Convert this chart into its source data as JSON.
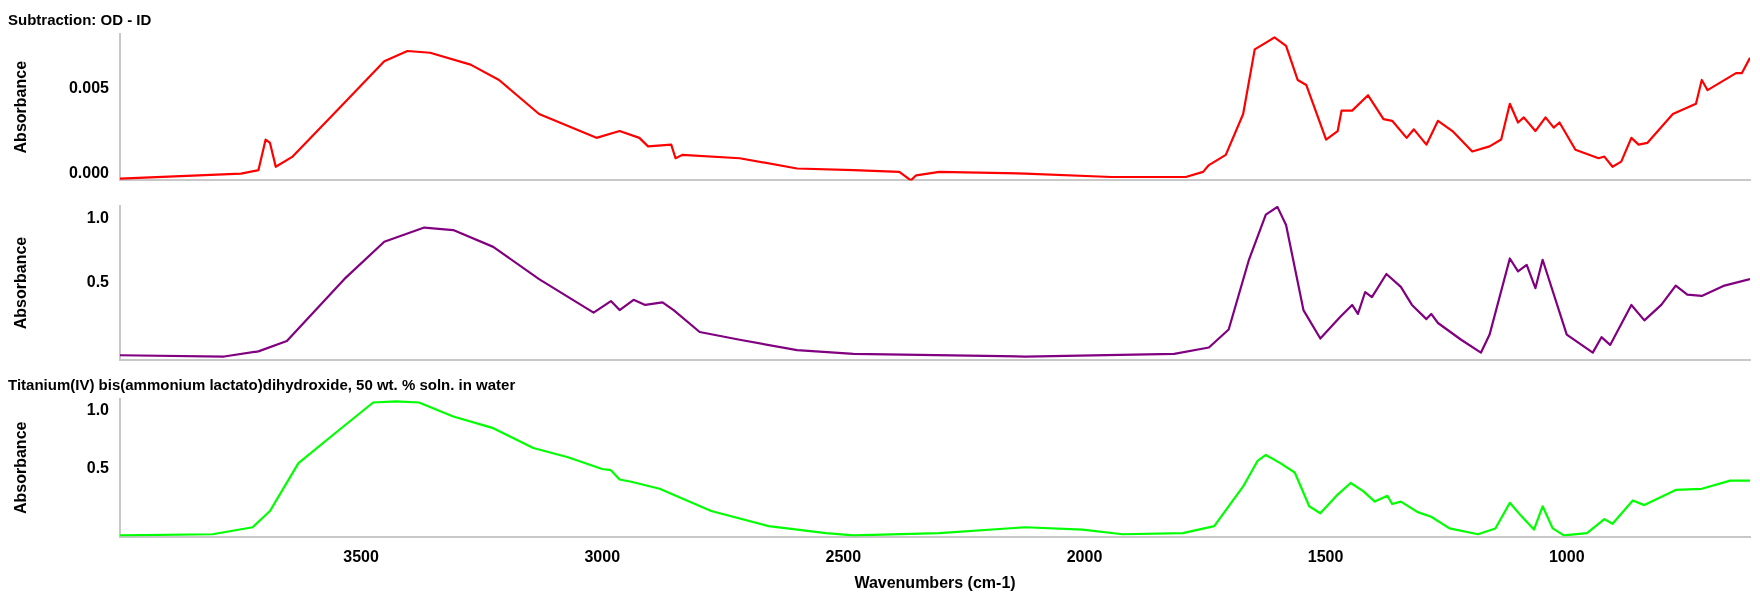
{
  "chart_data": [
    {
      "type": "line",
      "title": "Subtraction: OD - ID",
      "ylabel": "Absorbance",
      "xlim": [
        4000,
        620
      ],
      "ylim": [
        -0.0004,
        0.0082
      ],
      "yticks": [
        {
          "value": 0,
          "label": "0.000"
        },
        {
          "value": 0.005,
          "label": "0.005"
        }
      ],
      "tick_labels": "y",
      "x": [
        4000,
        3749,
        3713,
        3698,
        3689,
        3677,
        3642,
        3547,
        3452,
        3404,
        3357,
        3273,
        3214,
        3131,
        3012,
        2964,
        2923,
        2905,
        2857,
        2848,
        2834,
        2715,
        2596,
        2479,
        2384,
        2360,
        2349,
        2301,
        2123,
        1944,
        1790,
        1754,
        1742,
        1707,
        1671,
        1647,
        1606,
        1582,
        1558,
        1540,
        1499,
        1475,
        1467,
        1445,
        1412,
        1380,
        1362,
        1332,
        1317,
        1291,
        1267,
        1237,
        1196,
        1160,
        1136,
        1118,
        1101,
        1089,
        1065,
        1044,
        1027,
        1015,
        982,
        934,
        922,
        905,
        887,
        866,
        851,
        833,
        780,
        732,
        720,
        708,
        649,
        637,
        620
      ],
      "series": [
        {
          "color": "#ff0000",
          "values": [
            -0.0003,
            0,
            0.0002,
            0.002,
            0.0018,
            0.0004,
            0.001,
            0.0038,
            0.0066,
            0.0072,
            0.0071,
            0.0064,
            0.0055,
            0.0035,
            0.0021,
            0.0025,
            0.0021,
            0.0016,
            0.0017,
            0.0009,
            0.0011,
            0.0009,
            0.0003,
            0.0002,
            0.0001,
            -0.0004,
            -0.0001,
            0.0001,
            0,
            -0.0002,
            -0.0002,
            0.0001,
            0.0005,
            0.0011,
            0.0035,
            0.0073,
            0.008,
            0.0075,
            0.0055,
            0.0052,
            0.002,
            0.0025,
            0.0037,
            0.0037,
            0.0046,
            0.0032,
            0.0031,
            0.0021,
            0.0026,
            0.0017,
            0.0031,
            0.0025,
            0.0013,
            0.0016,
            0.002,
            0.0041,
            0.003,
            0.0033,
            0.0025,
            0.0033,
            0.0027,
            0.003,
            0.0014,
            0.0009,
            0.001,
            0.0004,
            0.0007,
            0.0021,
            0.0017,
            0.0018,
            0.0035,
            0.0041,
            0.0055,
            0.0049,
            0.0059,
            0.0059,
            0.0068
          ]
        }
      ]
    },
    {
      "type": "line",
      "ylabel": "Absorbance",
      "xlim": [
        4000,
        620
      ],
      "ylim": [
        -0.1,
        1.1
      ],
      "yticks": [
        {
          "value": 0.5,
          "label": "0.5"
        },
        {
          "value": 1,
          "label": "1.0"
        }
      ],
      "tick_labels": "y",
      "x": [
        4000,
        3784,
        3713,
        3654,
        3535,
        3452,
        3369,
        3309,
        3226,
        3131,
        3018,
        2982,
        2964,
        2935,
        2911,
        2875,
        2852,
        2798,
        2715,
        2596,
        2479,
        2123,
        1814,
        1742,
        1701,
        1659,
        1624,
        1600,
        1582,
        1546,
        1511,
        1469,
        1445,
        1433,
        1418,
        1404,
        1374,
        1344,
        1321,
        1291,
        1281,
        1267,
        1219,
        1178,
        1160,
        1118,
        1101,
        1083,
        1065,
        1050,
        1000,
        946,
        928,
        910,
        866,
        839,
        804,
        774,
        750,
        720,
        673,
        620
      ],
      "series": [
        {
          "color": "#800080",
          "values": [
            -0.06,
            -0.07,
            -0.03,
            0.05,
            0.53,
            0.82,
            0.93,
            0.91,
            0.78,
            0.53,
            0.27,
            0.36,
            0.29,
            0.37,
            0.33,
            0.35,
            0.29,
            0.12,
            0.06,
            -0.02,
            -0.05,
            -0.07,
            -0.05,
            0,
            0.14,
            0.68,
            1.03,
            1.09,
            0.95,
            0.29,
            0.07,
            0.24,
            0.33,
            0.26,
            0.43,
            0.39,
            0.57,
            0.47,
            0.33,
            0.22,
            0.26,
            0.19,
            0.06,
            -0.04,
            0.1,
            0.69,
            0.59,
            0.64,
            0.46,
            0.68,
            0.1,
            -0.04,
            0.08,
            0.02,
            0.33,
            0.21,
            0.33,
            0.48,
            0.41,
            0.4,
            0.48,
            0.53
          ]
        }
      ]
    },
    {
      "type": "line",
      "title": "Titanium(IV) bis(ammonium lactato)dihydroxide, 50 wt. % soln. in water",
      "ylabel": "Absorbance",
      "xlabel": "Wavenumbers (cm-1)",
      "xlim": [
        4000,
        620
      ],
      "ylim": [
        -0.08,
        1.1
      ],
      "xticks": [
        3500,
        3000,
        2500,
        2000,
        1500,
        1000
      ],
      "yticks": [
        {
          "value": 0.5,
          "label": "0.5"
        },
        {
          "value": 1,
          "label": "1.0"
        }
      ],
      "x": [
        4000,
        3808,
        3725,
        3689,
        3630,
        3547,
        3475,
        3428,
        3380,
        3309,
        3226,
        3143,
        3071,
        3000,
        2982,
        2964,
        2940,
        2881,
        2774,
        2655,
        2536,
        2479,
        2301,
        2123,
        2004,
        1921,
        1796,
        1731,
        1671,
        1641,
        1624,
        1594,
        1564,
        1534,
        1511,
        1475,
        1448,
        1422,
        1398,
        1372,
        1362,
        1344,
        1309,
        1281,
        1243,
        1184,
        1148,
        1118,
        1095,
        1068,
        1050,
        1029,
        1006,
        958,
        922,
        905,
        863,
        839,
        774,
        720,
        661,
        620
      ],
      "series": [
        {
          "color": "#00ff00",
          "values": [
            -0.07,
            -0.06,
            0,
            0.14,
            0.55,
            0.83,
            1.07,
            1.08,
            1.07,
            0.95,
            0.85,
            0.68,
            0.6,
            0.5,
            0.49,
            0.41,
            0.39,
            0.33,
            0.14,
            0.01,
            -0.05,
            -0.07,
            -0.05,
            0,
            -0.02,
            -0.06,
            -0.05,
            0.01,
            0.35,
            0.57,
            0.62,
            0.55,
            0.47,
            0.18,
            0.12,
            0.28,
            0.38,
            0.31,
            0.22,
            0.27,
            0.2,
            0.22,
            0.13,
            0.09,
            -0.01,
            -0.06,
            -0.01,
            0.21,
            0.1,
            -0.02,
            0.18,
            -0.01,
            -0.07,
            -0.05,
            0.07,
            0.03,
            0.23,
            0.19,
            0.32,
            0.33,
            0.4,
            0.4
          ]
        }
      ]
    }
  ]
}
